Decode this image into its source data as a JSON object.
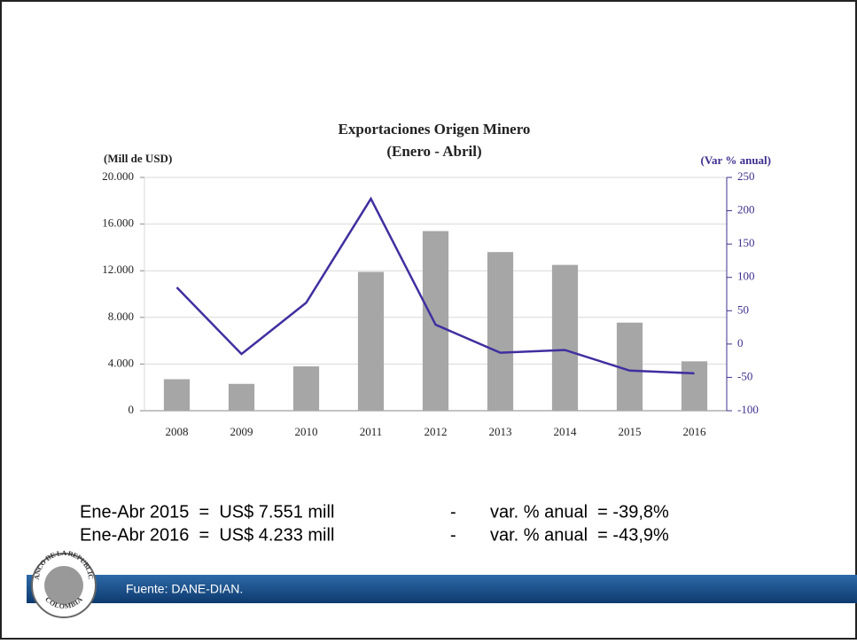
{
  "chart_data": {
    "type": "bar_line",
    "title": "Exportaciones Origen Minero",
    "subtitle": "(Enero - Abril)",
    "ylabel": "(Mill de USD)",
    "y2label": "(Var % anual)",
    "categories": [
      "2008",
      "2009",
      "2010",
      "2011",
      "2012",
      "2013",
      "2014",
      "2015",
      "2016"
    ],
    "series": [
      {
        "type": "bar",
        "color": "#a6a6a6",
        "values": [
          2700,
          2300,
          3800,
          11900,
          15400,
          13600,
          12500,
          7551,
          4233
        ]
      },
      {
        "type": "line",
        "axis": "y2",
        "color": "#3f2fa0",
        "values": [
          85,
          -15,
          62,
          218,
          29,
          -13,
          -9,
          -39.8,
          -43.9
        ]
      }
    ],
    "ylim": [
      0,
      20000
    ],
    "yticks": [
      0,
      {
        "value": 4000,
        "label": "4.000"
      },
      {
        "value": 8000,
        "label": "8.000"
      },
      {
        "value": 12000,
        "label": "12.000"
      },
      {
        "value": 16000,
        "label": "16.000"
      },
      {
        "value": 20000,
        "label": "20.000"
      }
    ],
    "y2lim": [
      -100,
      250
    ],
    "y2ticks": [
      -100,
      -50,
      0,
      50,
      100,
      150,
      200,
      250
    ],
    "grid": true
  },
  "notes": [
    {
      "left": "Ene-Abr 2015  =  US$ 7.551 mill",
      "dash": "-",
      "right": "var. % anual  = -39,8%"
    },
    {
      "left": "Ene-Abr 2016  =  US$ 4.233 mill",
      "dash": "-",
      "right": "var. % anual  = -43,9%"
    }
  ],
  "footer": "Fuente: DANE-DIAN.",
  "logo": {
    "top": "BANCO DE LA REPUBLICA",
    "bottom": "COLOMBIA"
  }
}
